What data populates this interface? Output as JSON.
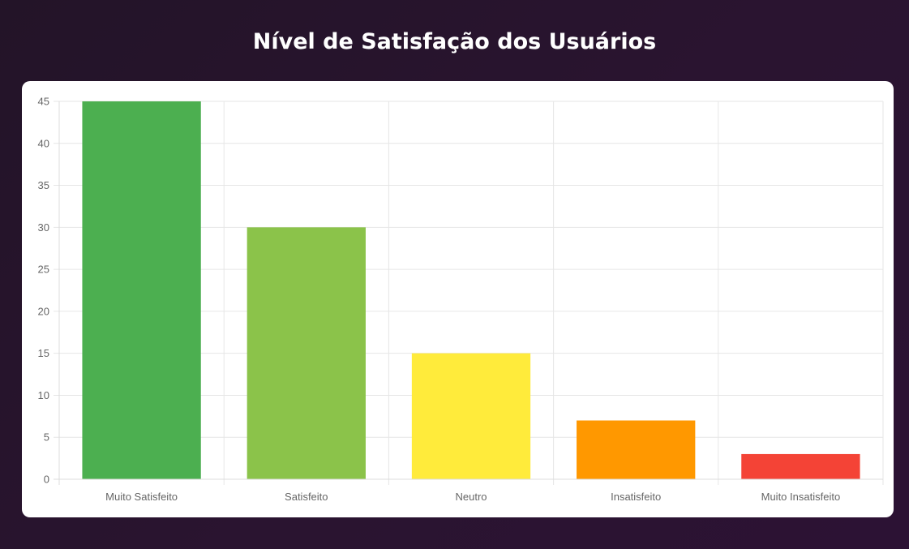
{
  "page": {
    "title": "Nível de Satisfação dos Usuários"
  },
  "chart_data": {
    "type": "bar",
    "categories": [
      "Muito Satisfeito",
      "Satisfeito",
      "Neutro",
      "Insatisfeito",
      "Muito Insatisfeito"
    ],
    "values": [
      45,
      30,
      15,
      7,
      3
    ],
    "colors": [
      "#4caf50",
      "#8bc34a",
      "#ffeb3b",
      "#ff9800",
      "#f44336"
    ],
    "title": "Nível de Satisfação dos Usuários",
    "xlabel": "",
    "ylabel": "",
    "ylim": [
      0,
      45
    ],
    "yticks": [
      "0",
      "5",
      "10",
      "15",
      "20",
      "25",
      "30",
      "35",
      "40",
      "45"
    ],
    "grid": true,
    "legend": "none"
  }
}
